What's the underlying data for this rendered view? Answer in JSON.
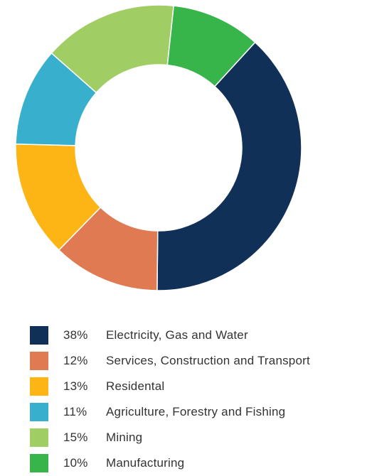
{
  "chart_data": {
    "type": "pie",
    "donut": true,
    "title": "",
    "legend_position": "bottom",
    "series": [
      {
        "name": "Electricity, Gas and Water",
        "percent_label": "38%",
        "value": 38,
        "color": "#113057"
      },
      {
        "name": "Services, Construction and Transport",
        "percent_label": "12%",
        "value": 12,
        "color": "#DF7A52"
      },
      {
        "name": "Residental",
        "percent_label": "13%",
        "value": 13,
        "color": "#FDB515"
      },
      {
        "name": "Agriculture, Forestry and Fishing",
        "percent_label": "11%",
        "value": 11,
        "color": "#38B0CD"
      },
      {
        "name": "Mining",
        "percent_label": "15%",
        "value": 15,
        "color": "#A1CE64"
      },
      {
        "name": "Manufacturing",
        "percent_label": "10%",
        "value": 10,
        "color": "#37B44A"
      }
    ]
  }
}
